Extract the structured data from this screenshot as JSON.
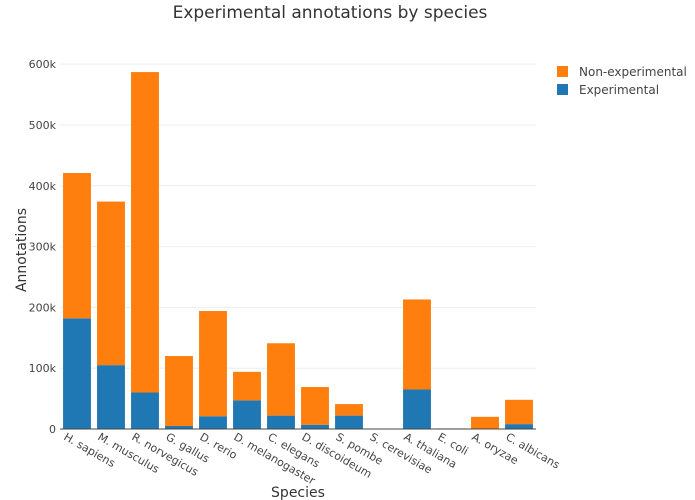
{
  "chart_data": {
    "type": "bar",
    "stacked": true,
    "title": "Experimental annotations by species",
    "xlabel": "Species",
    "ylabel": "Annotations",
    "ylim": [
      0,
      620000
    ],
    "yticks": [
      0,
      100000,
      200000,
      300000,
      400000,
      500000,
      600000
    ],
    "ytick_labels": [
      "0",
      "100k",
      "200k",
      "300k",
      "400k",
      "500k",
      "600k"
    ],
    "grid": true,
    "legend_position": "top-right",
    "categories": [
      "H. sapiens",
      "M. musculus",
      "R. norvegicus",
      "G. gallus",
      "D. rerio",
      "D. melanogaster",
      "C. elegans",
      "D. discoideum",
      "S. pombe",
      "S. cerevisiae",
      "A. thaliana",
      "E. coli",
      "A. oryzae",
      "C. albicans"
    ],
    "series": [
      {
        "name": "Experimental",
        "color": "#1f77b4",
        "values": [
          182000,
          105000,
          60000,
          5000,
          21000,
          47000,
          22000,
          7000,
          22000,
          0,
          65000,
          0,
          0,
          8000
        ]
      },
      {
        "name": "Non-experimental",
        "color": "#ff7f0e",
        "values": [
          239000,
          269000,
          527000,
          115000,
          173000,
          47000,
          119000,
          62000,
          19000,
          0,
          148000,
          1000,
          20000,
          40000
        ]
      }
    ],
    "legend": [
      {
        "name": "Non-experimental",
        "color": "#ff7f0e"
      },
      {
        "name": "Experimental",
        "color": "#1f77b4"
      }
    ]
  }
}
